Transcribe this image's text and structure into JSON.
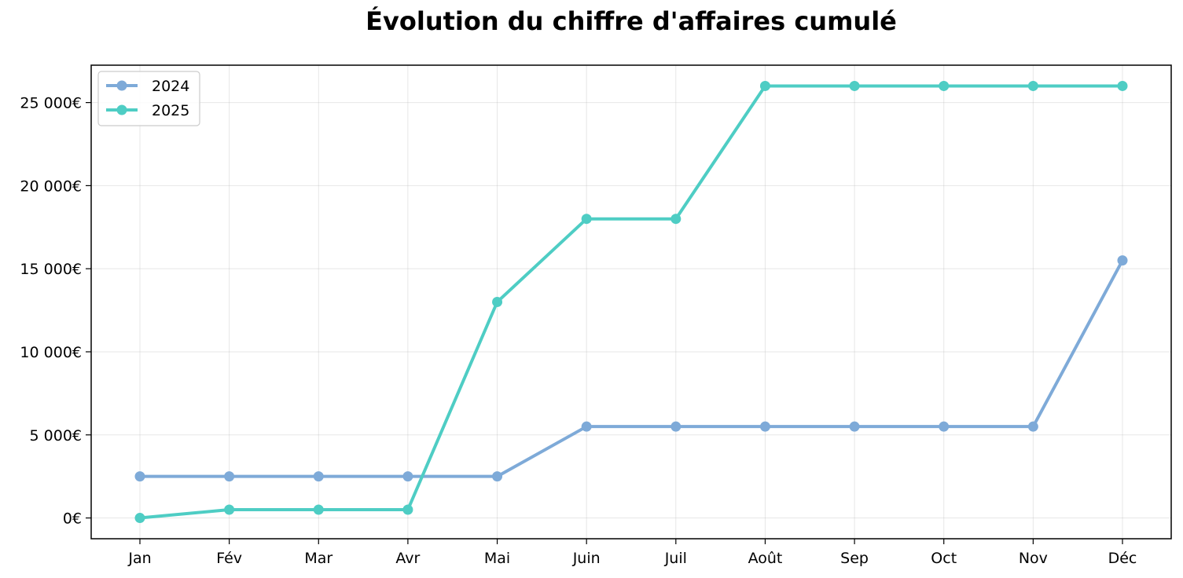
{
  "chart_data": {
    "type": "line",
    "title": "Évolution du chiffre d'affaires cumulé",
    "xlabel": "",
    "ylabel": "",
    "categories": [
      "Jan",
      "Fév",
      "Mar",
      "Avr",
      "Mai",
      "Juin",
      "Juil",
      "Août",
      "Sep",
      "Oct",
      "Nov",
      "Déc"
    ],
    "ylim": [
      -1250,
      27250
    ],
    "yticks": [
      0,
      5000,
      10000,
      15000,
      20000,
      25000
    ],
    "ytick_labels": [
      "0€",
      "5 000€",
      "10 000€",
      "15 000€",
      "20 000€",
      "25 000€"
    ],
    "grid": true,
    "legend_position": "top-left",
    "series": [
      {
        "name": "2024",
        "color": "#7eaad8",
        "values": [
          2500,
          2500,
          2500,
          2500,
          2500,
          5500,
          5500,
          5500,
          5500,
          5500,
          5500,
          15500
        ]
      },
      {
        "name": "2025",
        "color": "#4ecdc4",
        "values": [
          0,
          500,
          500,
          500,
          13000,
          18000,
          18000,
          26000,
          26000,
          26000,
          26000,
          26000
        ]
      }
    ]
  }
}
